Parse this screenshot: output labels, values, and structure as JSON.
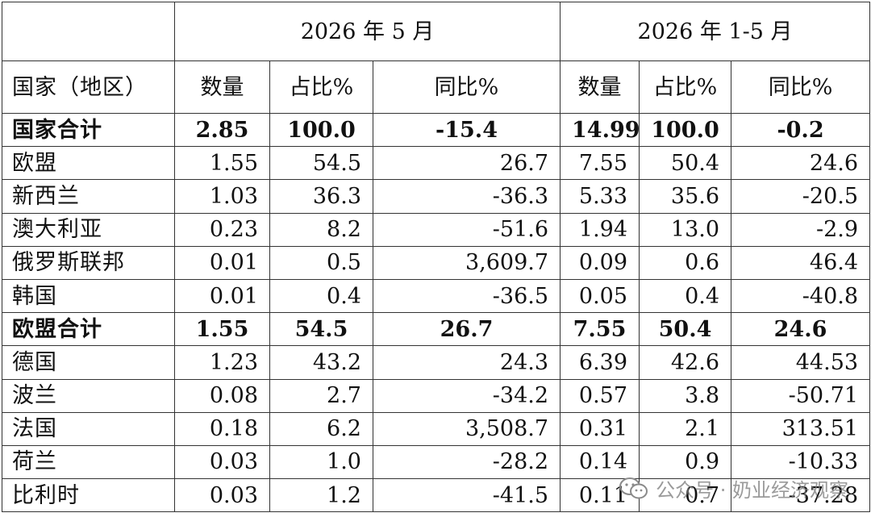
{
  "table": {
    "periods": [
      "2026 年 5 月",
      "2026 年 1-5 月"
    ],
    "headers": {
      "region": "国家（地区）",
      "qty": "数量",
      "share": "占比%",
      "yoy": "同比%"
    },
    "rows": [
      {
        "name": "国家合计",
        "may_qty": "2.85",
        "may_share": "100.0",
        "may_yoy": "-15.4",
        "ytd_qty": "14.99",
        "ytd_share": "100.0",
        "ytd_yoy": "-0.2",
        "total": true
      },
      {
        "name": "欧盟",
        "may_qty": "1.55",
        "may_share": "54.5",
        "may_yoy": "26.7",
        "ytd_qty": "7.55",
        "ytd_share": "50.4",
        "ytd_yoy": "24.6",
        "total": false
      },
      {
        "name": "新西兰",
        "may_qty": "1.03",
        "may_share": "36.3",
        "may_yoy": "-36.3",
        "ytd_qty": "5.33",
        "ytd_share": "35.6",
        "ytd_yoy": "-20.5",
        "total": false
      },
      {
        "name": "澳大利亚",
        "may_qty": "0.23",
        "may_share": "8.2",
        "may_yoy": "-51.6",
        "ytd_qty": "1.94",
        "ytd_share": "13.0",
        "ytd_yoy": "-2.9",
        "total": false
      },
      {
        "name": "俄罗斯联邦",
        "may_qty": "0.01",
        "may_share": "0.5",
        "may_yoy": "3,609.7",
        "ytd_qty": "0.09",
        "ytd_share": "0.6",
        "ytd_yoy": "46.4",
        "total": false
      },
      {
        "name": "韩国",
        "may_qty": "0.01",
        "may_share": "0.4",
        "may_yoy": "-36.5",
        "ytd_qty": "0.05",
        "ytd_share": "0.4",
        "ytd_yoy": "-40.8",
        "total": false
      },
      {
        "name": "欧盟合计",
        "may_qty": "1.55",
        "may_share": "54.5",
        "may_yoy": "26.7",
        "ytd_qty": "7.55",
        "ytd_share": "50.4",
        "ytd_yoy": "24.6",
        "total": true
      },
      {
        "name": "德国",
        "may_qty": "1.23",
        "may_share": "43.2",
        "may_yoy": "24.3",
        "ytd_qty": "6.39",
        "ytd_share": "42.6",
        "ytd_yoy": "44.53",
        "total": false
      },
      {
        "name": "波兰",
        "may_qty": "0.08",
        "may_share": "2.7",
        "may_yoy": "-34.2",
        "ytd_qty": "0.57",
        "ytd_share": "3.8",
        "ytd_yoy": "-50.71",
        "total": false
      },
      {
        "name": "法国",
        "may_qty": "0.18",
        "may_share": "6.2",
        "may_yoy": "3,508.7",
        "ytd_qty": "0.31",
        "ytd_share": "2.1",
        "ytd_yoy": "313.51",
        "total": false
      },
      {
        "name": "荷兰",
        "may_qty": "0.03",
        "may_share": "1.0",
        "may_yoy": "-28.2",
        "ytd_qty": "0.14",
        "ytd_share": "0.9",
        "ytd_yoy": "-10.33",
        "total": false
      },
      {
        "name": "比利时",
        "may_qty": "0.03",
        "may_share": "1.2",
        "may_yoy": "-41.5",
        "ytd_qty": "0.11",
        "ytd_share": "0.7",
        "ytd_yoy": "-37.28",
        "total": false
      }
    ]
  },
  "watermark": {
    "text": "公众号 · 奶业经济观察",
    "icon": "wechat-icon",
    "color": "#7a7a7a"
  }
}
